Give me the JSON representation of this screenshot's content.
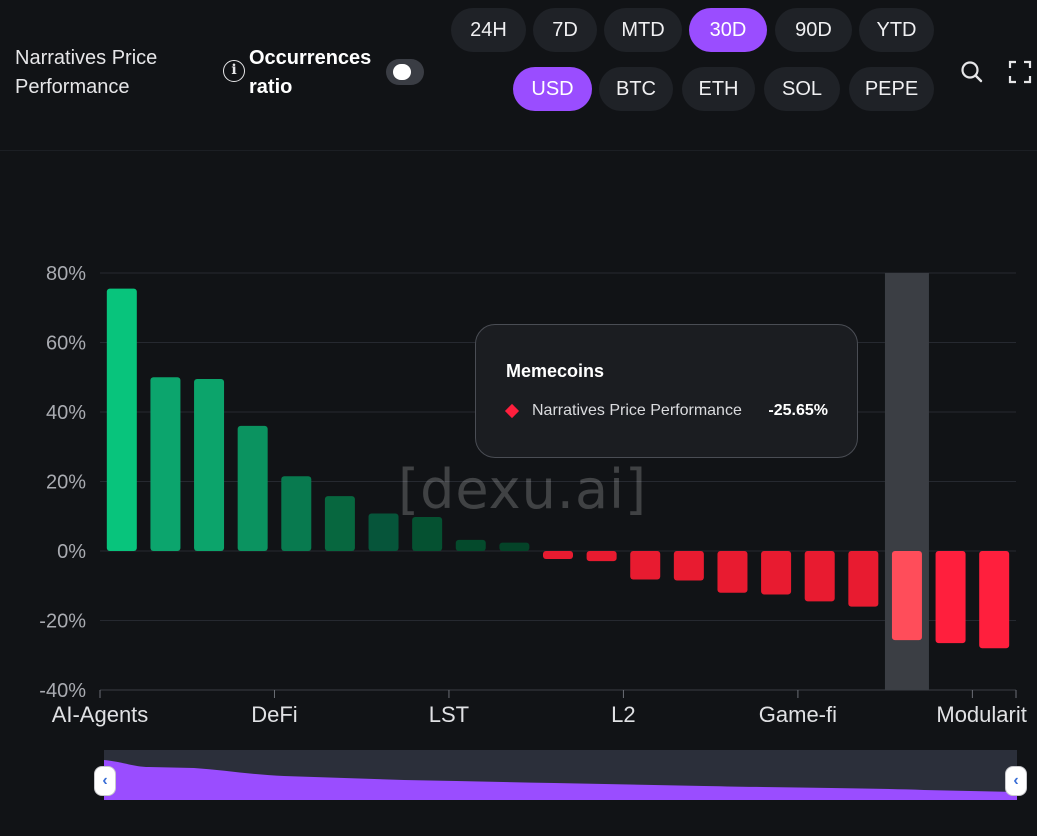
{
  "header": {
    "title": "Narratives Price Performance",
    "occurrences_label": "Occurrences ratio",
    "toggle_on": false,
    "time_ranges": [
      "24H",
      "7D",
      "MTD",
      "30D",
      "90D",
      "YTD"
    ],
    "active_time_range": "30D",
    "currencies": [
      "USD",
      "BTC",
      "ETH",
      "SOL",
      "PEPE"
    ],
    "active_currency": "USD",
    "icons": [
      "info-icon",
      "search-icon",
      "fullscreen-icon"
    ]
  },
  "chart_data": {
    "type": "bar",
    "x_tick_labels": [
      "AI-Agents",
      "DeFi",
      "LST",
      "L2",
      "Game-fi",
      "Modularit"
    ],
    "y_ticks": [
      "80%",
      "60%",
      "40%",
      "20%",
      "0%",
      "-20%",
      "-40%"
    ],
    "ylim": [
      -40,
      80
    ],
    "grid": true,
    "values": [
      75.5,
      50,
      49.5,
      36,
      21.5,
      15.8,
      10.8,
      9.8,
      3.2,
      2.4,
      -2.3,
      -2.9,
      -8.2,
      -8.5,
      -12,
      -12.5,
      -14.5,
      -16,
      -25.65,
      -26.5,
      -28
    ],
    "highlight_index": 18,
    "positive_colors": [
      "#08c47c",
      "#0ca56d",
      "#0ca46b",
      "#0b9360",
      "#087a4f",
      "#07673f",
      "#06553a",
      "#055131",
      "#044a2c",
      "#044328"
    ],
    "negative_colors": [
      "#e81b30",
      "#e81b30",
      "#e81b30",
      "#e81b30",
      "#e81b30",
      "#e81b30",
      "#e81b30",
      "#e81b30",
      "#ff4d5a",
      "#ff1f3d",
      "#ff1f3d"
    ],
    "tooltip": {
      "title": "Memecoins",
      "series": "Narratives Price Performance",
      "value": "-25.65%",
      "marker_color": "#ff1f3d"
    },
    "watermark": "[dexu.ai]"
  },
  "colors": {
    "accent": "#9a4dff",
    "background": "#111316",
    "highlight_band": "#3b3e44"
  }
}
